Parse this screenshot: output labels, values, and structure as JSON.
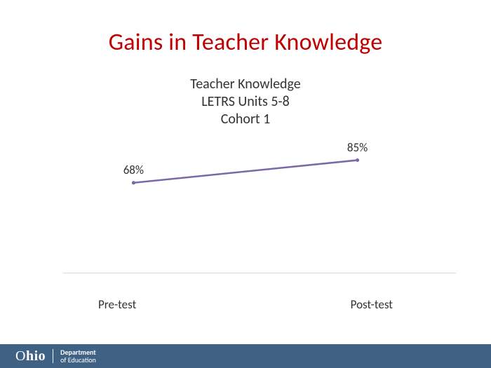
{
  "title": {
    "text": "Gains in Teacher Knowledge",
    "color": "#c00000",
    "fontsize": 34,
    "fontweight": 400
  },
  "subtitle": {
    "line1": "Teacher Knowledge",
    "line2": "LETRS Units 5-8",
    "line3": "Cohort 1",
    "color": "#333333",
    "fontsize": 20
  },
  "chart": {
    "type": "line",
    "categories": [
      "Pre-test",
      "Post-test"
    ],
    "values": [
      68,
      85
    ],
    "value_labels": [
      "68%",
      "85%"
    ],
    "line_color": "#7b68a6",
    "line_width": 2.5,
    "marker_color": "#7b68a6",
    "marker_radius": 2.5,
    "label_color": "#333333",
    "label_fontsize": 17,
    "xlabel_color": "#333333",
    "xlabel_fontsize": 17,
    "ylim": [
      0,
      100
    ],
    "axis_rule_color": "#d9d9d9",
    "axis_rule_width": 1,
    "background_color": "#ffffff",
    "label_y_offset": -8,
    "x_positions_pct": [
      12,
      88
    ]
  },
  "footer": {
    "background_color": "#3f6184",
    "logo_text": "Ohio",
    "dept_line1": "Department",
    "dept_line2": "of Education",
    "text_color": "#ffffff"
  }
}
